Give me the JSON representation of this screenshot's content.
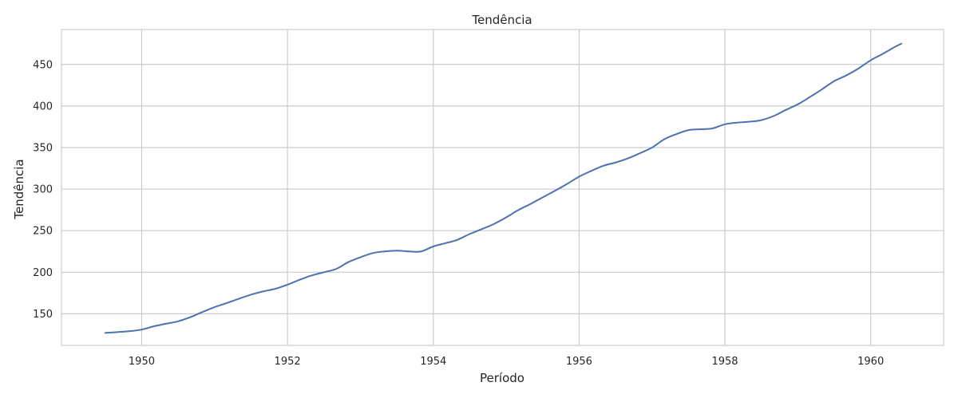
{
  "chart_data": {
    "type": "line",
    "title": "Tendência",
    "xlabel": "Período",
    "ylabel": "Tendência",
    "xlim": [
      1948.9,
      1961.0
    ],
    "ylim": [
      112,
      492
    ],
    "xticks": [
      1950,
      1952,
      1954,
      1956,
      1958,
      1960
    ],
    "yticks": [
      150,
      200,
      250,
      300,
      350,
      400,
      450
    ],
    "grid": true,
    "legend": "none",
    "colors": {
      "line": "#4c72b0",
      "grid": "#cccccc",
      "frame": "#cccccc",
      "background": "#ffffff"
    },
    "series": [
      {
        "x": [
          1949.5,
          1949.67,
          1949.83,
          1950.0,
          1950.17,
          1950.33,
          1950.5,
          1950.67,
          1950.83,
          1951.0,
          1951.17,
          1951.33,
          1951.5,
          1951.67,
          1951.83,
          1952.0,
          1952.17,
          1952.33,
          1952.5,
          1952.67,
          1952.83,
          1953.0,
          1953.17,
          1953.33,
          1953.5,
          1953.67,
          1953.83,
          1954.0,
          1954.17,
          1954.33,
          1954.5,
          1954.67,
          1954.83,
          1955.0,
          1955.17,
          1955.33,
          1955.5,
          1955.67,
          1955.83,
          1956.0,
          1956.17,
          1956.33,
          1956.5,
          1956.67,
          1956.83,
          1957.0,
          1957.17,
          1957.33,
          1957.5,
          1957.67,
          1957.83,
          1958.0,
          1958.17,
          1958.33,
          1958.5,
          1958.67,
          1958.83,
          1959.0,
          1959.17,
          1959.33,
          1959.5,
          1959.67,
          1959.83,
          1960.0,
          1960.17,
          1960.33,
          1960.42
        ],
        "y": [
          127,
          128,
          129,
          131,
          135,
          138,
          141,
          146,
          152,
          158,
          163,
          168,
          173,
          177,
          180,
          185,
          191,
          196,
          200,
          204,
          212,
          218,
          223,
          225,
          226,
          225,
          225,
          231,
          235,
          239,
          246,
          252,
          258,
          266,
          275,
          282,
          290,
          298,
          306,
          315,
          322,
          328,
          332,
          337,
          343,
          350,
          360,
          366,
          371,
          372,
          373,
          378,
          380,
          381,
          383,
          388,
          395,
          402,
          411,
          420,
          430,
          437,
          445,
          455,
          463,
          471,
          475
        ]
      }
    ]
  }
}
